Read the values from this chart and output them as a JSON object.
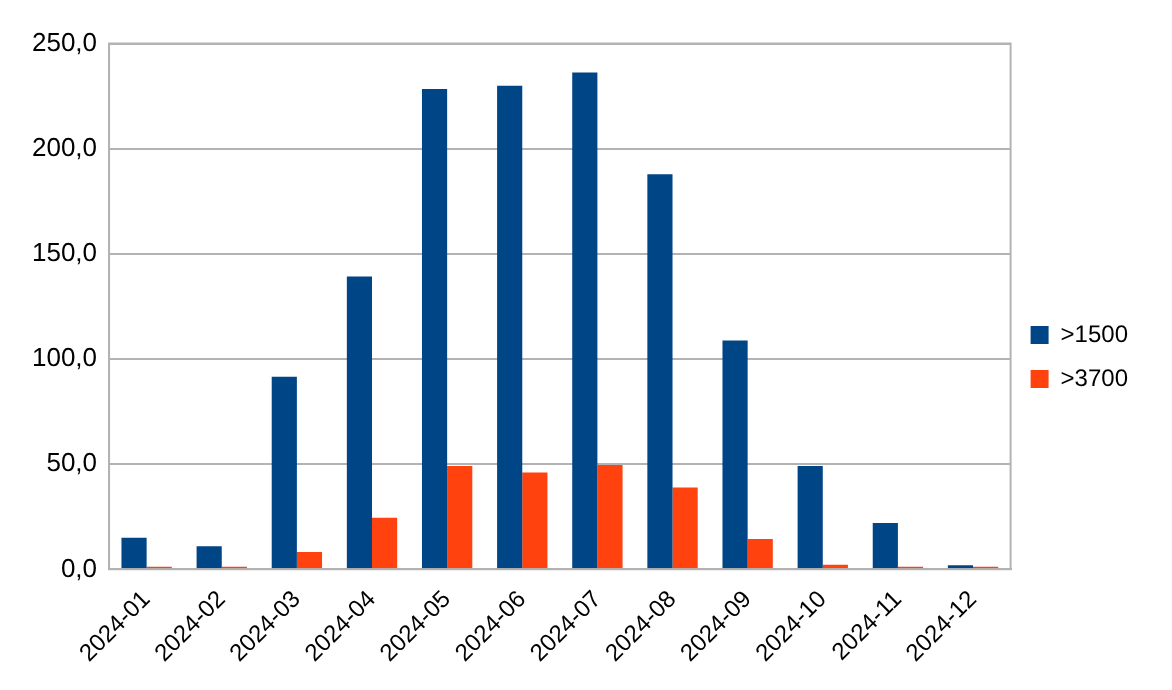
{
  "chart_data": {
    "type": "bar",
    "categories": [
      "2024-01",
      "2024-02",
      "2024-03",
      "2024-04",
      "2024-05",
      "2024-06",
      "2024-07",
      "2024-08",
      "2024-09",
      "2024-10",
      "2024-11",
      "2024-12"
    ],
    "series": [
      {
        "name": ">1500",
        "color": "#004586",
        "values": [
          15,
          11,
          91.6,
          139.3,
          228.4,
          229.9,
          236.2,
          187.9,
          108.8,
          49.2,
          22,
          1.9
        ]
      },
      {
        "name": ">3700",
        "color": "#ff420e",
        "values": [
          1.2,
          1.2,
          8.2,
          24.5,
          49.2,
          46.1,
          49.6,
          38.9,
          14.4,
          2.2,
          1.2,
          1.2
        ]
      }
    ],
    "ylim": [
      0,
      250
    ],
    "yticks": [
      {
        "value": 0,
        "label": "0,0"
      },
      {
        "value": 50,
        "label": "50,0"
      },
      {
        "value": 100,
        "label": "100,0"
      },
      {
        "value": 150,
        "label": "150,0"
      },
      {
        "value": 200,
        "label": "200,0"
      },
      {
        "value": 250,
        "label": "250,0"
      }
    ],
    "grid": "y",
    "legend": "right"
  }
}
